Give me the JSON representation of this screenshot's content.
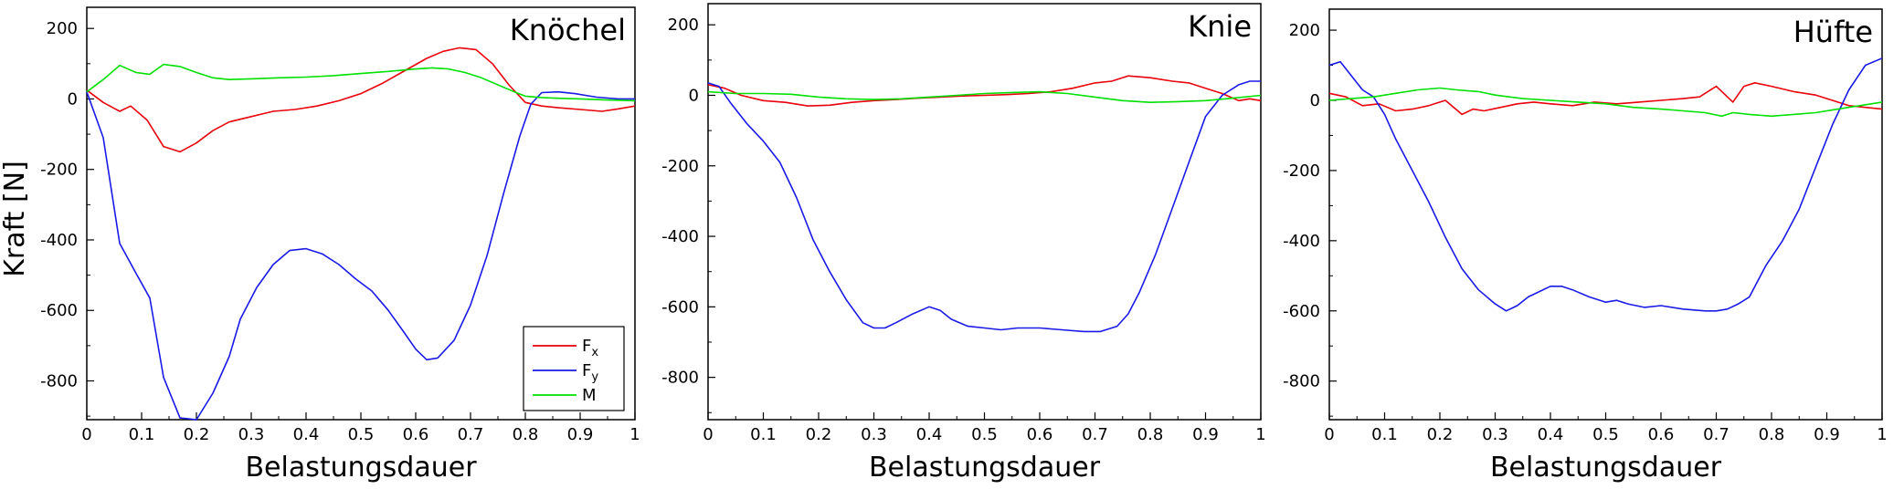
{
  "figure": {
    "ylabel": "Kraft [N]"
  },
  "legend": {
    "entries": [
      {
        "base": "F",
        "sub": "x",
        "color": "#e8000b"
      },
      {
        "base": "F",
        "sub": "y",
        "color": "#1a1ae6"
      },
      {
        "base": "M",
        "sub": "",
        "color": "#00e000"
      }
    ]
  },
  "chart_data": [
    {
      "type": "line",
      "title": "Knöchel",
      "xlabel": "Belastungsdauer",
      "xlim": [
        0,
        1
      ],
      "ylim": [
        -910,
        260
      ],
      "xticks": [
        "0",
        "0.1",
        "0.2",
        "0.3",
        "0.4",
        "0.5",
        "0.6",
        "0.7",
        "0.8",
        "0.9",
        "1"
      ],
      "yticks": [
        "200",
        "0",
        "-200",
        "-400",
        "-600",
        "-800"
      ],
      "series": [
        {
          "name": "Fx",
          "color": "#e8000b",
          "x": [
            0,
            0.03,
            0.06,
            0.08,
            0.11,
            0.14,
            0.17,
            0.2,
            0.23,
            0.26,
            0.3,
            0.34,
            0.38,
            0.42,
            0.46,
            0.5,
            0.54,
            0.58,
            0.62,
            0.65,
            0.68,
            0.71,
            0.74,
            0.77,
            0.8,
            0.83,
            0.86,
            0.9,
            0.94,
            0.97,
            1
          ],
          "values": [
            25,
            -10,
            -35,
            -20,
            -60,
            -135,
            -150,
            -125,
            -90,
            -65,
            -50,
            -35,
            -30,
            -20,
            -5,
            15,
            45,
            80,
            115,
            135,
            145,
            140,
            100,
            40,
            -10,
            -20,
            -25,
            -30,
            -35,
            -28,
            -20
          ]
        },
        {
          "name": "Fy",
          "color": "#1a1ae6",
          "x": [
            0,
            0.03,
            0.06,
            0.09,
            0.115,
            0.14,
            0.17,
            0.2,
            0.23,
            0.26,
            0.28,
            0.31,
            0.34,
            0.37,
            0.4,
            0.43,
            0.46,
            0.49,
            0.52,
            0.55,
            0.58,
            0.6,
            0.62,
            0.64,
            0.67,
            0.7,
            0.73,
            0.76,
            0.79,
            0.81,
            0.83,
            0.86,
            0.89,
            0.93,
            0.97,
            1
          ],
          "values": [
            20,
            -110,
            -410,
            -495,
            -565,
            -790,
            -905,
            -910,
            -835,
            -730,
            -625,
            -535,
            -470,
            -430,
            -425,
            -440,
            -470,
            -510,
            -545,
            -600,
            -665,
            -710,
            -740,
            -735,
            -685,
            -585,
            -445,
            -270,
            -105,
            -15,
            18,
            20,
            15,
            5,
            0,
            0
          ]
        },
        {
          "name": "M",
          "color": "#00e000",
          "x": [
            0,
            0.03,
            0.06,
            0.09,
            0.115,
            0.14,
            0.17,
            0.2,
            0.23,
            0.26,
            0.3,
            0.35,
            0.4,
            0.45,
            0.5,
            0.55,
            0.6,
            0.63,
            0.66,
            0.69,
            0.72,
            0.75,
            0.78,
            0.8,
            0.83,
            0.86,
            0.9,
            0.95,
            1
          ],
          "values": [
            20,
            55,
            95,
            75,
            70,
            98,
            92,
            75,
            60,
            55,
            57,
            60,
            62,
            66,
            72,
            78,
            85,
            88,
            85,
            75,
            60,
            40,
            20,
            8,
            4,
            2,
            0,
            -3,
            -5
          ]
        }
      ]
    },
    {
      "type": "line",
      "title": "Knie",
      "xlabel": "Belastungsdauer",
      "xlim": [
        0,
        1
      ],
      "ylim": [
        -920,
        260
      ],
      "xticks": [
        "0",
        "0.1",
        "0.2",
        "0.3",
        "0.4",
        "0.5",
        "0.6",
        "0.7",
        "0.8",
        "0.9",
        "1"
      ],
      "yticks": [
        "200",
        "0",
        "-200",
        "-400",
        "-600",
        "-800"
      ],
      "series": [
        {
          "name": "Fx",
          "color": "#e8000b",
          "x": [
            0,
            0.03,
            0.06,
            0.1,
            0.14,
            0.18,
            0.22,
            0.26,
            0.3,
            0.34,
            0.38,
            0.42,
            0.46,
            0.5,
            0.54,
            0.58,
            0.62,
            0.66,
            0.7,
            0.73,
            0.76,
            0.8,
            0.84,
            0.87,
            0.9,
            0.93,
            0.96,
            0.98,
            1
          ],
          "values": [
            30,
            20,
            0,
            -15,
            -20,
            -30,
            -28,
            -20,
            -15,
            -12,
            -8,
            -5,
            -2,
            0,
            2,
            5,
            10,
            20,
            35,
            40,
            55,
            50,
            40,
            35,
            20,
            5,
            -15,
            -10,
            -15
          ]
        },
        {
          "name": "Fy",
          "color": "#1a1ae6",
          "x": [
            0,
            0.02,
            0.04,
            0.07,
            0.1,
            0.13,
            0.16,
            0.19,
            0.22,
            0.25,
            0.28,
            0.3,
            0.32,
            0.34,
            0.37,
            0.4,
            0.42,
            0.44,
            0.47,
            0.5,
            0.53,
            0.56,
            0.6,
            0.64,
            0.68,
            0.71,
            0.74,
            0.76,
            0.78,
            0.81,
            0.84,
            0.87,
            0.9,
            0.93,
            0.96,
            0.98,
            1
          ],
          "values": [
            35,
            25,
            -20,
            -80,
            -130,
            -190,
            -290,
            -410,
            -500,
            -580,
            -645,
            -660,
            -660,
            -645,
            -620,
            -600,
            -610,
            -635,
            -655,
            -660,
            -665,
            -660,
            -660,
            -665,
            -670,
            -670,
            -655,
            -620,
            -560,
            -450,
            -320,
            -190,
            -60,
            0,
            30,
            40,
            40
          ]
        },
        {
          "name": "M",
          "color": "#00e000",
          "x": [
            0,
            0.05,
            0.1,
            0.15,
            0.2,
            0.25,
            0.3,
            0.35,
            0.4,
            0.45,
            0.5,
            0.55,
            0.6,
            0.65,
            0.7,
            0.75,
            0.8,
            0.85,
            0.9,
            0.95,
            1
          ],
          "values": [
            10,
            5,
            5,
            3,
            -5,
            -10,
            -12,
            -10,
            -5,
            0,
            5,
            8,
            10,
            5,
            -5,
            -15,
            -20,
            -18,
            -15,
            -8,
            0
          ]
        }
      ]
    },
    {
      "type": "line",
      "title": "Hüfte",
      "xlabel": "Belastungsdauer",
      "xlim": [
        0,
        1
      ],
      "ylim": [
        -910,
        260
      ],
      "xticks": [
        "0",
        "0.1",
        "0.2",
        "0.3",
        "0.4",
        "0.5",
        "0.6",
        "0.7",
        "0.8",
        "0.9",
        "1"
      ],
      "yticks": [
        "200",
        "0",
        "-200",
        "-400",
        "-600",
        "-800"
      ],
      "series": [
        {
          "name": "Fx",
          "color": "#e8000b",
          "x": [
            0,
            0.03,
            0.06,
            0.09,
            0.12,
            0.15,
            0.18,
            0.21,
            0.24,
            0.26,
            0.28,
            0.31,
            0.34,
            0.37,
            0.4,
            0.44,
            0.48,
            0.52,
            0.56,
            0.6,
            0.64,
            0.67,
            0.7,
            0.73,
            0.75,
            0.77,
            0.8,
            0.84,
            0.88,
            0.91,
            0.94,
            0.97,
            1
          ],
          "values": [
            20,
            10,
            -15,
            -10,
            -30,
            -25,
            -15,
            0,
            -40,
            -25,
            -30,
            -20,
            -10,
            -5,
            -10,
            -15,
            -5,
            -10,
            -5,
            0,
            5,
            10,
            40,
            -5,
            40,
            50,
            40,
            25,
            15,
            0,
            -15,
            -20,
            -25
          ]
        },
        {
          "name": "Fy",
          "color": "#1a1ae6",
          "x": [
            0,
            0.02,
            0.04,
            0.06,
            0.08,
            0.1,
            0.12,
            0.15,
            0.18,
            0.21,
            0.24,
            0.27,
            0.3,
            0.32,
            0.34,
            0.36,
            0.38,
            0.4,
            0.42,
            0.44,
            0.47,
            0.5,
            0.52,
            0.54,
            0.57,
            0.6,
            0.64,
            0.68,
            0.7,
            0.72,
            0.74,
            0.76,
            0.79,
            0.82,
            0.85,
            0.88,
            0.91,
            0.94,
            0.97,
            1
          ],
          "values": [
            100,
            110,
            70,
            30,
            10,
            -40,
            -110,
            -200,
            -290,
            -390,
            -480,
            -540,
            -580,
            -600,
            -585,
            -560,
            -545,
            -530,
            -530,
            -540,
            -560,
            -575,
            -570,
            -580,
            -590,
            -585,
            -595,
            -600,
            -600,
            -595,
            -580,
            -560,
            -470,
            -400,
            -310,
            -190,
            -70,
            30,
            100,
            120
          ]
        },
        {
          "name": "M",
          "color": "#00e000",
          "x": [
            0,
            0.04,
            0.08,
            0.12,
            0.16,
            0.2,
            0.23,
            0.27,
            0.3,
            0.35,
            0.4,
            0.45,
            0.5,
            0.55,
            0.6,
            0.64,
            0.68,
            0.71,
            0.73,
            0.76,
            0.8,
            0.84,
            0.88,
            0.92,
            0.96,
            1
          ],
          "values": [
            0,
            5,
            10,
            20,
            30,
            35,
            30,
            25,
            15,
            5,
            0,
            -5,
            -10,
            -20,
            -25,
            -30,
            -35,
            -45,
            -35,
            -40,
            -45,
            -40,
            -35,
            -25,
            -15,
            -5
          ]
        }
      ]
    }
  ]
}
